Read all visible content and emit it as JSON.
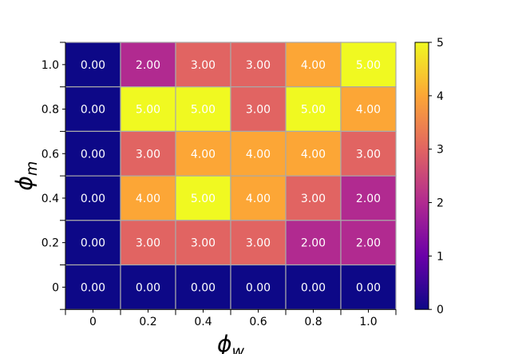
{
  "chart_data": {
    "type": "heatmap",
    "x_categories": [
      "0",
      "0.2",
      "0.4",
      "0.6",
      "0.8",
      "1.0"
    ],
    "y_categories": [
      "0",
      "0.2",
      "0.4",
      "0.6",
      "0.8",
      "1.0"
    ],
    "xlabel": "ϕ",
    "xlabel_sub": "w",
    "ylabel": "ϕ",
    "ylabel_sub": "m",
    "values_by_row": [
      {
        "y": "1.0",
        "values": [
          0,
          2,
          3,
          3,
          4,
          5
        ]
      },
      {
        "y": "0.8",
        "values": [
          0,
          5,
          5,
          3,
          5,
          4
        ]
      },
      {
        "y": "0.6",
        "values": [
          0,
          3,
          4,
          4,
          4,
          3
        ]
      },
      {
        "y": "0.4",
        "values": [
          0,
          4,
          5,
          4,
          3,
          2
        ]
      },
      {
        "y": "0.2",
        "values": [
          0,
          3,
          3,
          3,
          2,
          2
        ]
      },
      {
        "y": "0",
        "values": [
          0,
          0,
          0,
          0,
          0,
          0
        ]
      }
    ],
    "cell_labels_by_row": [
      [
        "0.00",
        "2.00",
        "3.00",
        "3.00",
        "4.00",
        "5.00"
      ],
      [
        "0.00",
        "5.00",
        "5.00",
        "3.00",
        "5.00",
        "4.00"
      ],
      [
        "0.00",
        "3.00",
        "4.00",
        "4.00",
        "4.00",
        "3.00"
      ],
      [
        "0.00",
        "4.00",
        "5.00",
        "4.00",
        "3.00",
        "2.00"
      ],
      [
        "0.00",
        "3.00",
        "3.00",
        "3.00",
        "2.00",
        "2.00"
      ],
      [
        "0.00",
        "0.00",
        "0.00",
        "0.00",
        "0.00",
        "0.00"
      ]
    ],
    "colorbar": {
      "range": [
        0,
        5
      ],
      "ticks": [
        "0",
        "1",
        "2",
        "3",
        "4",
        "5"
      ],
      "colormap": "plasma"
    },
    "grid": true,
    "gridline_color": "#a9a9a9"
  }
}
